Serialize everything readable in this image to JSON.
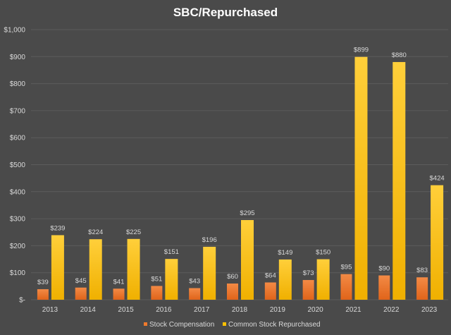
{
  "chart_data": {
    "type": "bar",
    "title": "SBC/Repurchased",
    "categories": [
      "2013",
      "2014",
      "2015",
      "2016",
      "2017",
      "2018",
      "2019",
      "2020",
      "2021",
      "2022",
      "2023"
    ],
    "series": [
      {
        "name": "Stock Compensation",
        "color": "#f07a2c",
        "values": [
          39,
          45,
          41,
          51,
          43,
          60,
          64,
          73,
          95,
          90,
          83
        ],
        "labels": [
          "$39",
          "$45",
          "$41",
          "$51",
          "$43",
          "$60",
          "$64",
          "$73",
          "$95",
          "$90",
          "$83"
        ]
      },
      {
        "name": "Common Stock Repurchased",
        "color": "#ffc000",
        "values": [
          239,
          224,
          225,
          151,
          196,
          295,
          149,
          150,
          899,
          880,
          424
        ],
        "labels": [
          "$239",
          "$224",
          "$225",
          "$151",
          "$196",
          "$295",
          "$149",
          "$150",
          "$899",
          "$880",
          "$424"
        ]
      }
    ],
    "yticks": [
      0,
      100,
      200,
      300,
      400,
      500,
      600,
      700,
      800,
      900,
      1000
    ],
    "ytick_labels": [
      "$-",
      "$100",
      "$200",
      "$300",
      "$400",
      "$500",
      "$600",
      "$700",
      "$800",
      "$900",
      "$1,000"
    ],
    "ylim": [
      0,
      1000
    ],
    "grid": true,
    "legend_position": "bottom"
  }
}
